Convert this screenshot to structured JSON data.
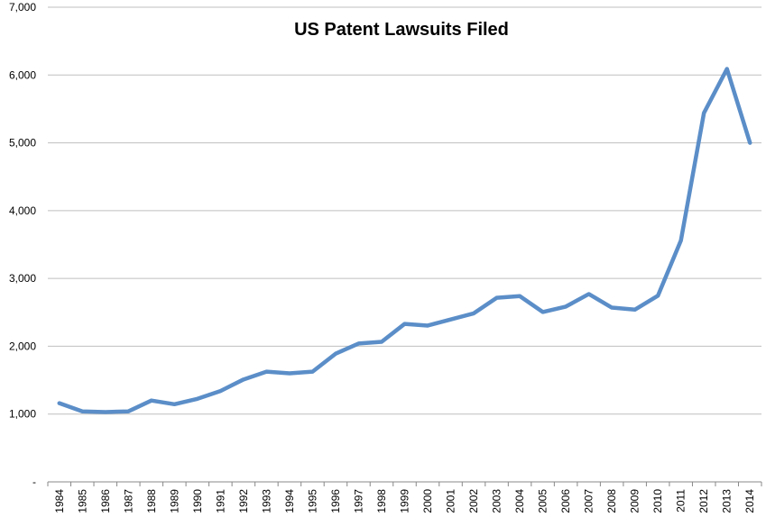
{
  "chart_data": {
    "type": "line",
    "title": "US Patent Lawsuits Filed",
    "xlabel": "",
    "ylabel": "",
    "ylim": [
      0,
      7000
    ],
    "yticks": [
      0,
      1000,
      2000,
      3000,
      4000,
      5000,
      6000,
      7000
    ],
    "ytick_labels": [
      "-",
      "1,000",
      "2,000",
      "3,000",
      "4,000",
      "5,000",
      "6,000",
      "7,000"
    ],
    "grid": true,
    "legend": "none",
    "categories": [
      "1984",
      "1985",
      "1986",
      "1987",
      "1988",
      "1989",
      "1990",
      "1991",
      "1992",
      "1993",
      "1994",
      "1995",
      "1996",
      "1997",
      "1998",
      "1999",
      "2000",
      "2001",
      "2002",
      "2003",
      "2004",
      "2005",
      "2006",
      "2007",
      "2008",
      "2009",
      "2010",
      "2011",
      "2012",
      "2013",
      "2014"
    ],
    "series": [
      {
        "color": "#5b8ec8",
        "values": [
          1160,
          1040,
          1030,
          1040,
          1200,
          1145,
          1225,
          1340,
          1510,
          1625,
          1600,
          1625,
          1890,
          2040,
          2065,
          2330,
          2305,
          2395,
          2485,
          2715,
          2740,
          2505,
          2585,
          2770,
          2570,
          2540,
          2745,
          3560,
          5440,
          6090,
          5000
        ]
      }
    ]
  }
}
